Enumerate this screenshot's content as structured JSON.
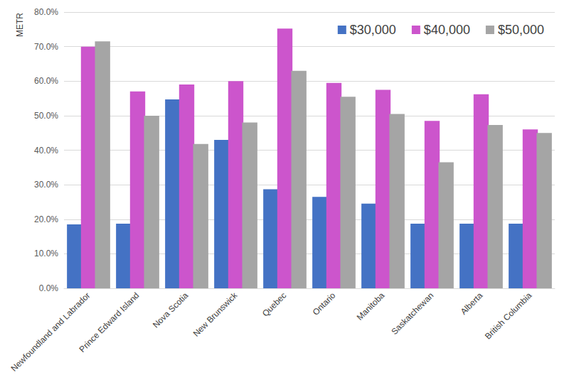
{
  "chart_data": {
    "type": "bar",
    "y_label": "METR",
    "categories": [
      "Newfoundland and Labrador",
      "Prince Edward Island",
      "Nova Scotia",
      "New Brunswick",
      "Quebec",
      "Ontario",
      "Manitoba",
      "Saskatchewan",
      "Alberta",
      "British Columbia"
    ],
    "series": [
      {
        "name": "$30,000",
        "color": "#4472c4",
        "values": [
          18.5,
          18.7,
          54.7,
          43.0,
          28.7,
          26.5,
          24.5,
          18.7,
          18.7,
          18.7
        ]
      },
      {
        "name": "$40,000",
        "color": "#cc55cc",
        "values": [
          70.0,
          57.0,
          59.0,
          60.0,
          75.2,
          59.5,
          57.5,
          48.5,
          56.2,
          46.0
        ]
      },
      {
        "name": "$50,000",
        "color": "#a5a5a5",
        "values": [
          71.5,
          50.0,
          41.8,
          48.0,
          63.0,
          55.5,
          50.5,
          36.5,
          47.3,
          45.0
        ]
      }
    ],
    "ylim": [
      0,
      80
    ],
    "yticks": [
      {
        "value": 0,
        "label": "0.0%"
      },
      {
        "value": 10,
        "label": "10.0%"
      },
      {
        "value": 20,
        "label": "20.0%"
      },
      {
        "value": 30,
        "label": "30.0%"
      },
      {
        "value": 40,
        "label": "40.0%"
      },
      {
        "value": 50,
        "label": "50.0%"
      },
      {
        "value": 60,
        "label": "60.0%"
      },
      {
        "value": 70,
        "label": "70.0%"
      },
      {
        "value": 80,
        "label": "80.0%"
      }
    ],
    "grid": true,
    "legend": "upper right"
  }
}
